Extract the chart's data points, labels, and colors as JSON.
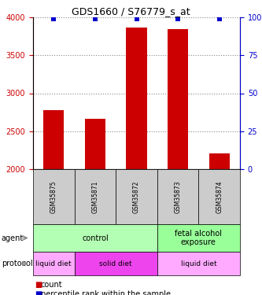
{
  "title": "GDS1660 / S76779_s_at",
  "samples": [
    "GSM35875",
    "GSM35871",
    "GSM35872",
    "GSM35873",
    "GSM35874"
  ],
  "counts": [
    2780,
    2660,
    3870,
    3840,
    2210
  ],
  "percentiles": [
    99,
    99,
    99,
    99,
    99
  ],
  "ylim_left": [
    2000,
    4000
  ],
  "ylim_right": [
    0,
    100
  ],
  "yticks_left": [
    2000,
    2500,
    3000,
    3500,
    4000
  ],
  "yticks_right": [
    0,
    25,
    50,
    75,
    100
  ],
  "bar_color": "#cc0000",
  "dot_color": "#0000cc",
  "bar_width": 0.5,
  "agent_groups": [
    {
      "label": "control",
      "cols": [
        0,
        1,
        2
      ],
      "color": "#b3ffb3"
    },
    {
      "label": "fetal alcohol\nexposure",
      "cols": [
        3,
        4
      ],
      "color": "#99ff99"
    }
  ],
  "protocol_groups": [
    {
      "label": "liquid diet",
      "cols": [
        0
      ],
      "color": "#ffaaff"
    },
    {
      "label": "solid diet",
      "cols": [
        1,
        2
      ],
      "color": "#ee44ee"
    },
    {
      "label": "liquid diet",
      "cols": [
        3,
        4
      ],
      "color": "#ffaaff"
    }
  ],
  "agent_label": "agent",
  "protocol_label": "protocol",
  "legend_count_label": "count",
  "legend_percentile_label": "percentile rank within the sample",
  "left_axis_color": "#cc0000",
  "right_axis_color": "#0000cc",
  "grid_color": "#888888",
  "sample_box_color": "#cccccc",
  "title_fontsize": 9,
  "tick_fontsize": 7,
  "sample_fontsize": 5.5,
  "label_fontsize": 7,
  "legend_fontsize": 7
}
